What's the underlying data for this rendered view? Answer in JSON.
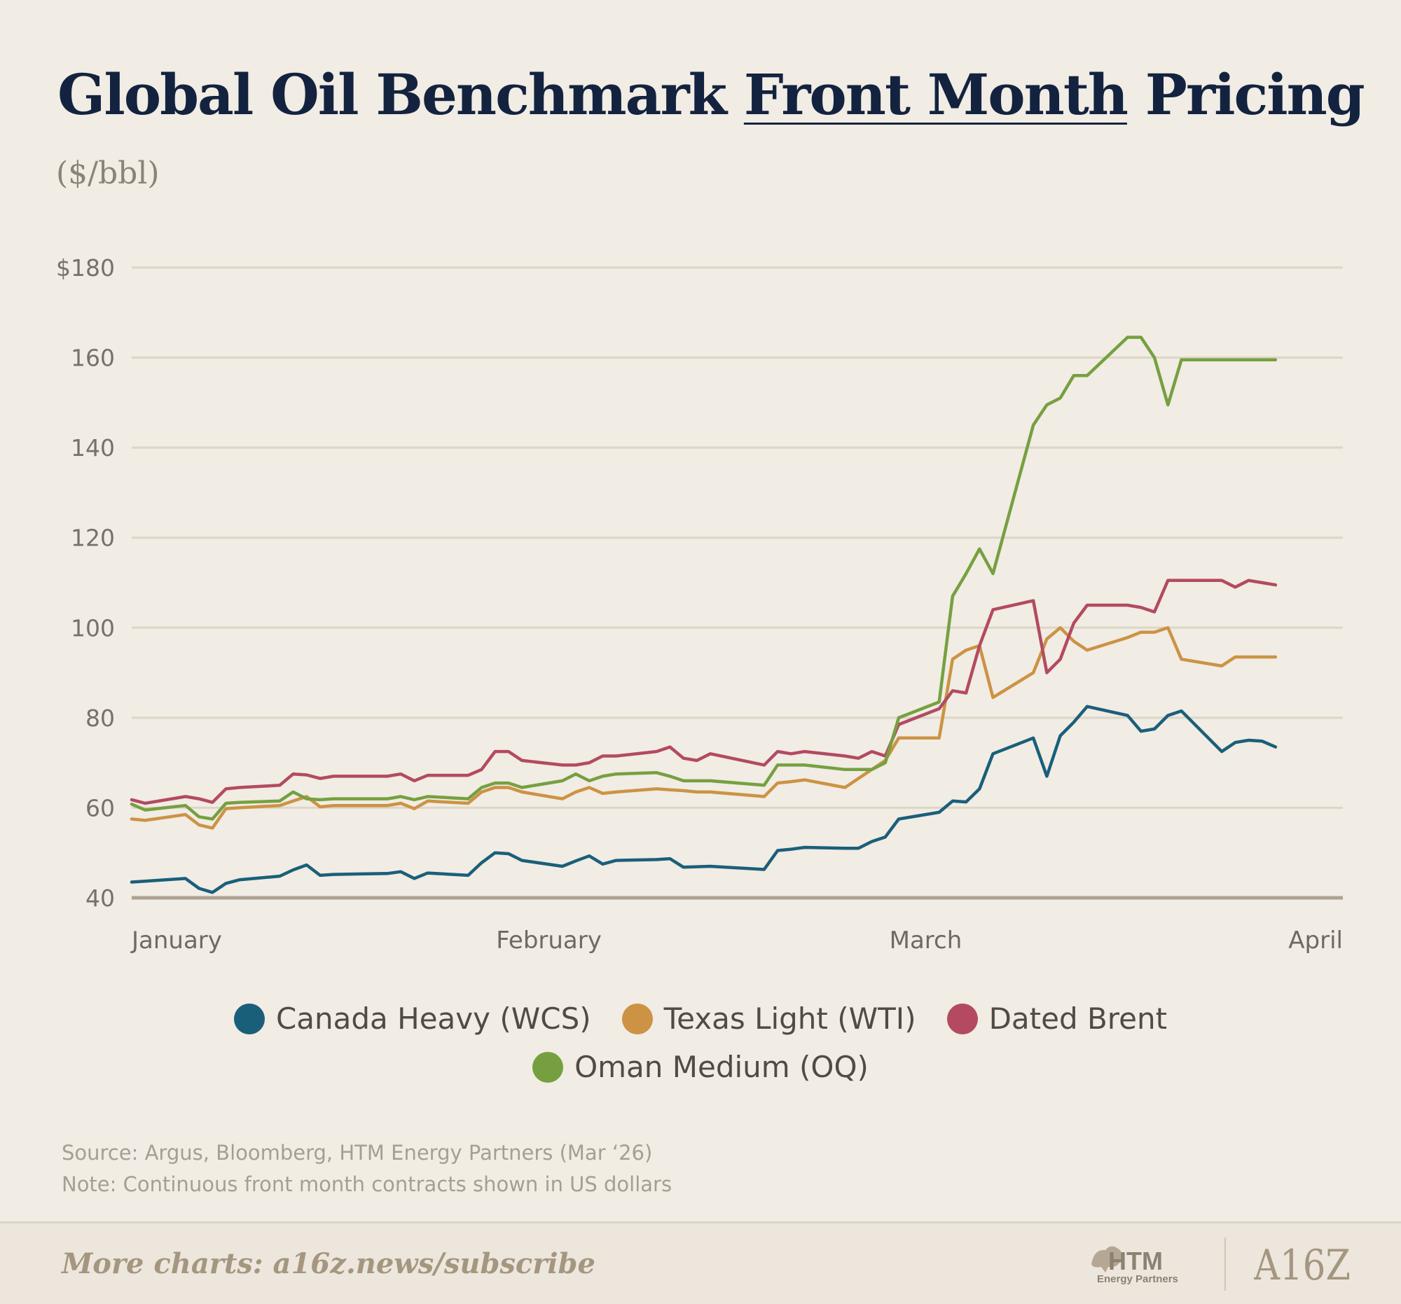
{
  "title": {
    "part1": "Global Oil Benchmark ",
    "highlight": "Front Month",
    "part2": " Pricing"
  },
  "subtitle": "($/bbl)",
  "chart_data": {
    "type": "line",
    "ylim": [
      40,
      180
    ],
    "yticks": [
      {
        "value": 40,
        "label": "40"
      },
      {
        "value": 60,
        "label": "60"
      },
      {
        "value": 80,
        "label": "80"
      },
      {
        "value": 100,
        "label": "100"
      },
      {
        "value": 120,
        "label": "120"
      },
      {
        "value": 140,
        "label": "140"
      },
      {
        "value": 160,
        "label": "160"
      },
      {
        "value": 180,
        "label": "$180"
      }
    ],
    "xlim": [
      "2026-01-01",
      "2026-04-01"
    ],
    "xticks": [
      {
        "value": "2026-01-01",
        "label": "January"
      },
      {
        "value": "2026-02-01",
        "label": "February"
      },
      {
        "value": "2026-03-01",
        "label": "March"
      },
      {
        "value": "2026-04-01",
        "label": "April"
      }
    ],
    "grid": true,
    "legend_position": "bottom",
    "x": [
      "2026-01-01",
      "2026-01-02",
      "2026-01-05",
      "2026-01-06",
      "2026-01-07",
      "2026-01-08",
      "2026-01-09",
      "2026-01-12",
      "2026-01-13",
      "2026-01-14",
      "2026-01-15",
      "2026-01-16",
      "2026-01-20",
      "2026-01-21",
      "2026-01-22",
      "2026-01-23",
      "2026-01-26",
      "2026-01-27",
      "2026-01-28",
      "2026-01-29",
      "2026-01-30",
      "2026-02-02",
      "2026-02-03",
      "2026-02-04",
      "2026-02-05",
      "2026-02-06",
      "2026-02-09",
      "2026-02-10",
      "2026-02-11",
      "2026-02-12",
      "2026-02-13",
      "2026-02-17",
      "2026-02-18",
      "2026-02-19",
      "2026-02-20",
      "2026-02-23",
      "2026-02-24",
      "2026-02-25",
      "2026-02-26",
      "2026-02-27",
      "2026-03-02",
      "2026-03-03",
      "2026-03-04",
      "2026-03-05",
      "2026-03-06",
      "2026-03-09",
      "2026-03-10",
      "2026-03-11",
      "2026-03-12",
      "2026-03-13",
      "2026-03-16",
      "2026-03-17",
      "2026-03-18",
      "2026-03-19",
      "2026-03-20",
      "2026-03-23",
      "2026-03-24",
      "2026-03-25",
      "2026-03-26",
      "2026-03-27"
    ],
    "series": [
      {
        "name": "Canada Heavy (WCS)",
        "color": "#1a5f7a",
        "values": [
          43.5,
          43.7,
          44.3,
          42.1,
          41.2,
          43.2,
          44.0,
          44.8,
          46.2,
          47.3,
          45.0,
          45.2,
          45.4,
          45.8,
          44.3,
          45.5,
          45.0,
          47.8,
          50.0,
          49.8,
          48.3,
          47.0,
          48.2,
          49.3,
          47.5,
          48.3,
          48.5,
          48.7,
          46.8,
          46.9,
          47.0,
          46.3,
          50.5,
          50.8,
          51.2,
          51.0,
          51.0,
          52.5,
          53.5,
          57.5,
          59.0,
          61.5,
          61.3,
          64.2,
          72.0,
          75.5,
          67.0,
          76.0,
          79.0,
          82.5,
          80.5,
          77.0,
          77.5,
          80.5,
          81.5,
          72.5,
          74.5,
          75.0,
          74.8,
          73.5
        ]
      },
      {
        "name": "Texas Light (WTI)",
        "color": "#cc9344",
        "values": [
          57.5,
          57.2,
          58.5,
          56.2,
          55.5,
          59.8,
          60.0,
          60.5,
          61.5,
          62.5,
          60.2,
          60.5,
          60.5,
          61.0,
          59.8,
          61.5,
          61.0,
          63.5,
          64.5,
          64.5,
          63.5,
          62.0,
          63.5,
          64.5,
          63.2,
          63.5,
          64.2,
          64.0,
          63.8,
          63.5,
          63.5,
          62.5,
          65.5,
          65.8,
          66.2,
          64.5,
          66.5,
          68.5,
          70.5,
          75.5,
          75.5,
          93.0,
          95.0,
          96.0,
          84.5,
          90.0,
          97.5,
          100.0,
          97.0,
          95.0,
          97.8,
          99.0,
          99.0,
          100.0,
          93.0,
          91.5,
          93.5,
          93.5,
          93.5,
          93.5
        ]
      },
      {
        "name": "Dated Brent",
        "color": "#b34a62",
        "values": [
          61.8,
          61.0,
          62.5,
          62.0,
          61.2,
          64.2,
          64.5,
          65.0,
          67.5,
          67.3,
          66.5,
          67.0,
          67.0,
          67.5,
          66.0,
          67.2,
          67.2,
          68.5,
          72.5,
          72.5,
          70.5,
          69.5,
          69.5,
          70.0,
          71.5,
          71.5,
          72.5,
          73.5,
          71.0,
          70.5,
          72.0,
          69.5,
          72.5,
          72.0,
          72.5,
          71.5,
          71.0,
          72.5,
          71.5,
          78.5,
          82.0,
          86.0,
          85.5,
          96.0,
          104.0,
          106.0,
          90.0,
          93.0,
          101.0,
          105.0,
          105.0,
          104.5,
          103.5,
          110.5,
          110.5,
          110.5,
          109.0,
          110.5,
          110.0,
          109.5
        ]
      },
      {
        "name": "Oman Medium (OQ)",
        "color": "#76a040",
        "values": [
          60.8,
          59.5,
          60.5,
          58.0,
          57.5,
          61.0,
          61.2,
          61.5,
          63.5,
          62.0,
          61.8,
          62.0,
          62.0,
          62.5,
          61.8,
          62.5,
          62.0,
          64.5,
          65.5,
          65.5,
          64.5,
          66.0,
          67.5,
          66.0,
          67.0,
          67.5,
          67.8,
          67.0,
          66.0,
          66.0,
          66.0,
          65.0,
          69.5,
          69.5,
          69.5,
          68.5,
          68.5,
          68.5,
          70.0,
          80.0,
          83.5,
          107.0,
          112.0,
          117.5,
          112.0,
          145.0,
          149.5,
          151.0,
          156.0,
          156.0,
          164.5,
          164.5,
          160.0,
          149.5,
          159.5,
          159.5,
          159.5,
          159.5,
          159.5,
          159.5
        ]
      }
    ]
  },
  "legend_rows": [
    [
      "Canada Heavy (WCS)",
      "Texas Light (WTI)",
      "Dated Brent"
    ],
    [
      "Oman Medium (OQ)"
    ]
  ],
  "source": "Source: Argus, Bloomberg, HTM Energy Partners (Mar ‘26)",
  "note": "Note: Continuous front month contracts shown in US dollars",
  "footer": {
    "cta": "More charts: a16z.news/subscribe",
    "htm_logo_text": "HTM",
    "htm_logo_subtext": "Energy Partners",
    "a16z_logo_text": "A16Z"
  }
}
